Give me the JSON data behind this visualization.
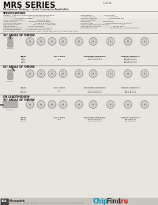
{
  "bg_color": "#e8e5e0",
  "title": "MRS SERIES",
  "subtitle": "Miniature Rotary - Gold Contacts Available",
  "doc_number": "JS-20-lof",
  "section1_title": "30° ANGLE OF THROW",
  "section2_title": "60° ANGLE OF THROW",
  "section3_title": "ON LEADTHROUGH\n90° ANGLE OF THROW",
  "spec_title": "SPECIFICATIONS",
  "spec_left": [
    "Contacts:  silver silver plated (gold on request) gold optional",
    "Current Rating:  ......................10A, 1/8 amp at 115 amp",
    "  ......................115 amp at 115 amp",
    "Initial Contact Resistance:  ......................20 mOhm max",
    "Contact Ratings:  ......................extremely strong material",
    "Insulation (Resistance):  ......................10,000 k at 500 to 1000",
    "Mechanical Strength:  ......................800 volt 3mm × 4mm steel",
    "Life Expectancy:  ......................15,000 cycles/day",
    "Operating Temperature:  ....–65°C to +100°C at 50°C/10°F",
    "Storage Temperature:  ....–70°C to +200°C at 5, at +50°C"
  ],
  "spec_right": [
    "Case Material:  ......................zinc die cast",
    "Actuator Material:  ......................die cast zinc",
    "Dielectric Flashover:  ......................100 min to 2 min",
    "Dielectric Strength:  ......................0",
    "Shock Load:  ......................1500 pounds",
    "Vibration Load:  ......................silver plated bronze 4 positions",
    "Single Torque Switching/Operation:  ......................0.4",
    "Indexing Stop Tolerance:  ......................manual ±0.5°",
    "Panel Requirements:  ......................see last page for additional options"
  ],
  "note_line": "NOTE: Standard rotary products are made to meet or match specifications described on top of page.",
  "col_headers": [
    "MRSB",
    "NO. POLES",
    "MACHINE CONTROLS",
    "SPECIAL DETAIL S"
  ],
  "rows_s1": [
    [
      "MRS-1",
      "",
      "1-2-3-4-5-6-8-10-12",
      "MRS-1B-1-2-3-4-5"
    ],
    [
      "MRS-2",
      "2305",
      "1-2-3-4-5-6-8-10-12",
      "MRS-2B-1-2-3-4-5"
    ],
    [
      "MRS-3",
      "",
      "",
      "MRS-3B-1-2-3-4-5"
    ],
    [
      "MRS-4",
      "",
      "",
      "MRS-4B-1-2-3-4-5"
    ]
  ],
  "rows_s2": [
    [
      "MRS-1-1",
      "2340",
      "1-2-3-4-5-6-8-10-12",
      "MRS-1-1B-1-2-3"
    ],
    [
      "MRS-2-1",
      "",
      "1-2-3-4-5-6-8-10-12",
      "MRS-2-1B-1-2-3"
    ]
  ],
  "rows_s3": [
    [
      "MRS-1-2",
      "2391",
      "1-2-3-4-5-6-8-10-12",
      "MRS-1-2B-1-2-3"
    ],
    [
      "MRS-2-2",
      "",
      "1-2-3-4-5-6-8-10-12",
      "MRS-2-2B-1-2-3"
    ]
  ],
  "footer_text": "Microswitch",
  "footer_sub": "1000 Haskell Ave.   Freeport, Illinois 61032   Tel: (815)235-6600   FAX: (815)235-6545   TWX: 910-631-1130",
  "watermark_chip": "Chip",
  "watermark_find": "Find",
  "watermark_ru": ".ru",
  "wm_color_chip": "#0099bb",
  "wm_color_find": "#333333",
  "wm_color_ru": "#cc1111"
}
